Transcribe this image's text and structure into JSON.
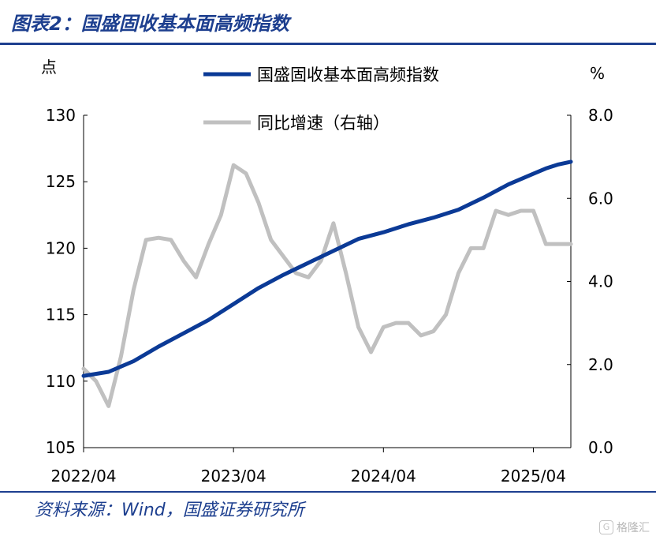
{
  "figure": {
    "title": "图表2：国盛固收基本面高频指数",
    "source": "资料来源：Wind，国盛证券研究所",
    "watermark": "格隆汇"
  },
  "chart_data": {
    "type": "line",
    "left_axis_unit": "点",
    "right_axis_unit": "%",
    "ylim_left": [
      105,
      130
    ],
    "ylim_right": [
      0.0,
      8.0
    ],
    "yticks_left": [
      "130",
      "125",
      "120",
      "115",
      "110",
      "105"
    ],
    "yticks_right": [
      "8.0",
      "6.0",
      "4.0",
      "2.0",
      "0.0"
    ],
    "xticks": [
      "2022/04",
      "2023/04",
      "2024/04",
      "2025/04"
    ],
    "x_range": [
      "2022-04",
      "2025-07"
    ],
    "grid": false,
    "legend_position": "top-center",
    "colors": {
      "index": "#0b3a96",
      "yoy": "#c0c0c0",
      "title": "#1d3f8f"
    },
    "series": [
      {
        "name": "国盛固收基本面高频指数",
        "axis": "left",
        "x": [
          "2022-04",
          "2022-06",
          "2022-08",
          "2022-10",
          "2022-12",
          "2023-02",
          "2023-04",
          "2023-06",
          "2023-08",
          "2023-10",
          "2023-12",
          "2024-02",
          "2024-04",
          "2024-06",
          "2024-08",
          "2024-10",
          "2024-12",
          "2025-02",
          "2025-04",
          "2025-05",
          "2025-06",
          "2025-07"
        ],
        "values": [
          110.4,
          110.7,
          111.5,
          112.6,
          113.6,
          114.6,
          115.8,
          117.0,
          118.0,
          118.9,
          119.8,
          120.7,
          121.2,
          121.8,
          122.3,
          122.9,
          123.8,
          124.8,
          125.6,
          126.0,
          126.3,
          126.5
        ]
      },
      {
        "name": "同比增速（右轴）",
        "axis": "right",
        "x": [
          "2022-04",
          "2022-05",
          "2022-06",
          "2022-07",
          "2022-08",
          "2022-09",
          "2022-10",
          "2022-11",
          "2022-12",
          "2023-01",
          "2023-02",
          "2023-03",
          "2023-04",
          "2023-05",
          "2023-06",
          "2023-07",
          "2023-08",
          "2023-09",
          "2023-10",
          "2023-11",
          "2023-12",
          "2024-01",
          "2024-02",
          "2024-03",
          "2024-04",
          "2024-05",
          "2024-06",
          "2024-07",
          "2024-08",
          "2024-09",
          "2024-10",
          "2024-11",
          "2024-12",
          "2025-01",
          "2025-02",
          "2025-03",
          "2025-04",
          "2025-05",
          "2025-06",
          "2025-07"
        ],
        "values": [
          1.9,
          1.6,
          1.0,
          2.2,
          3.8,
          5.0,
          5.05,
          5.0,
          4.5,
          4.1,
          4.9,
          5.6,
          6.8,
          6.6,
          5.9,
          5.0,
          4.6,
          4.2,
          4.1,
          4.5,
          5.4,
          4.2,
          2.9,
          2.3,
          2.9,
          3.0,
          3.0,
          2.7,
          2.8,
          3.2,
          4.2,
          4.8,
          4.8,
          5.7,
          5.6,
          5.7,
          5.7,
          4.9,
          4.9,
          4.9
        ]
      }
    ]
  }
}
